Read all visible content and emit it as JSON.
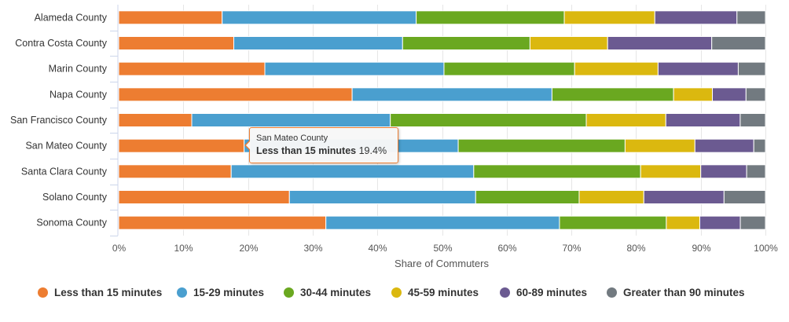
{
  "chart_data": {
    "type": "bar",
    "orientation": "horizontal",
    "stacking": "percent",
    "categories": [
      "Alameda County",
      "Contra Costa County",
      "Marin County",
      "Napa County",
      "San Francisco County",
      "San Mateo County",
      "Santa Clara County",
      "Solano County",
      "Sonoma County"
    ],
    "series": [
      {
        "name": "Less than 15 minutes",
        "color": "#ed7d31",
        "values": [
          16.0,
          17.8,
          22.6,
          36.1,
          11.3,
          19.4,
          17.4,
          26.4,
          32.2
        ]
      },
      {
        "name": "15-29 minutes",
        "color": "#4a9fcf",
        "values": [
          30.0,
          26.1,
          27.7,
          30.9,
          30.7,
          33.1,
          37.5,
          28.8,
          36.3
        ]
      },
      {
        "name": "30-44 minutes",
        "color": "#6aa820",
        "values": [
          22.9,
          19.7,
          20.2,
          18.8,
          30.3,
          25.8,
          25.8,
          16.0,
          16.6
        ]
      },
      {
        "name": "45-59 minutes",
        "color": "#dbb80f",
        "values": [
          14.0,
          12.0,
          12.9,
          6.0,
          12.3,
          10.8,
          9.3,
          10.0,
          5.2
        ]
      },
      {
        "name": "60-89 minutes",
        "color": "#6b5a91",
        "values": [
          12.7,
          16.1,
          12.4,
          5.2,
          11.5,
          9.1,
          7.1,
          12.4,
          6.3
        ]
      },
      {
        "name": "Greater than 90 minutes",
        "color": "#727a80",
        "values": [
          4.4,
          8.3,
          4.2,
          3.0,
          3.9,
          1.8,
          2.9,
          6.4,
          3.9
        ]
      }
    ],
    "xlabel": "Share of Commuters",
    "xlim": [
      0,
      100
    ],
    "ticks": [
      "0%",
      "10%",
      "20%",
      "30%",
      "40%",
      "50%",
      "60%",
      "70%",
      "80%",
      "90%",
      "100%"
    ],
    "grid": true,
    "legend_position": "bottom"
  },
  "tooltip": {
    "category": "San Mateo County",
    "series": "Less than 15 minutes",
    "value": "19.4%"
  }
}
